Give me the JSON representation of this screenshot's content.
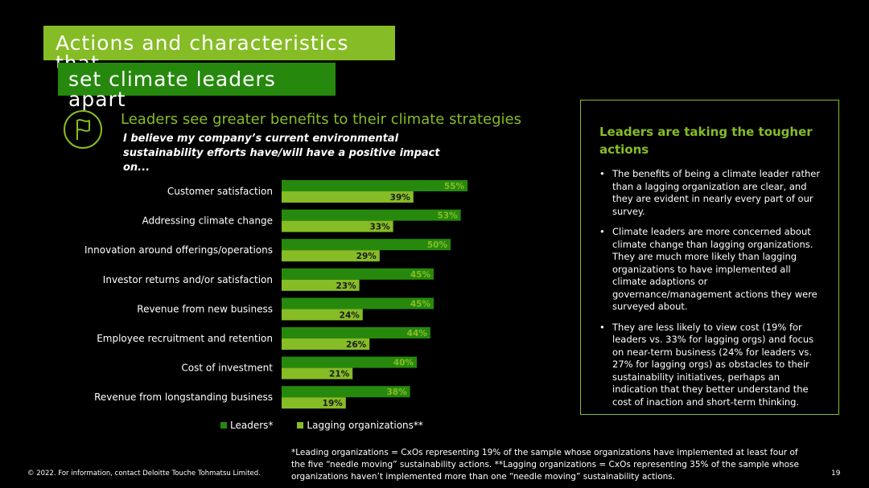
{
  "slide": {
    "title_line1": "Actions and characteristics that",
    "title_line2": "set climate leaders apart",
    "subtitle": "Leaders see greater benefits to their climate strategies",
    "question": "I believe my company’s current environmental sustainability efforts have/will have a positive impact on...",
    "icon": "flag-icon"
  },
  "colors": {
    "leaders": "#26890d",
    "lagging": "#86bc25",
    "accent": "#86bc25"
  },
  "chart_data": {
    "type": "bar",
    "orientation": "horizontal",
    "categories": [
      "Customer satisfaction",
      "Addressing climate change",
      "Innovation around offerings/operations",
      "Investor returns and/or satisfaction",
      "Revenue from new business",
      "Employee recruitment and retention",
      "Cost of investment",
      "Revenue from longstanding business"
    ],
    "series": [
      {
        "name": "Leaders*",
        "values": [
          55,
          53,
          50,
          45,
          45,
          44,
          40,
          38
        ],
        "labels": [
          "55%",
          "53%",
          "50%",
          "45%",
          "45%",
          "44%",
          "40%",
          "38%"
        ]
      },
      {
        "name": "Lagging organizations**",
        "values": [
          39,
          33,
          29,
          23,
          24,
          26,
          21,
          19
        ],
        "labels": [
          "39%",
          "33%",
          "29%",
          "23%",
          "24%",
          "26%",
          "21%",
          "19%"
        ]
      }
    ],
    "unit": "%",
    "xlim": [
      0,
      100
    ],
    "grid": false,
    "legend": "bottom"
  },
  "sidebar": {
    "heading": "Leaders are taking the tougher actions",
    "bullets": [
      "The benefits of being a climate leader rather than a lagging organization are clear, and they are evident in nearly every part of our survey.",
      "Climate leaders are more concerned about climate change than lagging organizations. They are much more likely than lagging organizations to have implemented all climate adaptions or governance/management actions they were surveyed about.",
      "They are less likely to view cost (19% for leaders vs. 33% for lagging orgs) and focus on near-term business (24% for leaders vs. 27% for lagging orgs) as obstacles to their sustainability initiatives, perhaps an indication that they better understand the cost of inaction and short-term thinking."
    ]
  },
  "footer": {
    "footnote": "*Leading organizations = CxOs representing 19% of the sample whose organizations have implemented at least four of the five “needle moving” sustainability actions. **Lagging organizations = CxOs representing 35% of the sample whose organizations haven’t implemented more than one “needle moving” sustainability actions.",
    "copyright": "© 2022. For information, contact Deloitte Touche Tohmatsu Limited.",
    "page_number": "19"
  }
}
